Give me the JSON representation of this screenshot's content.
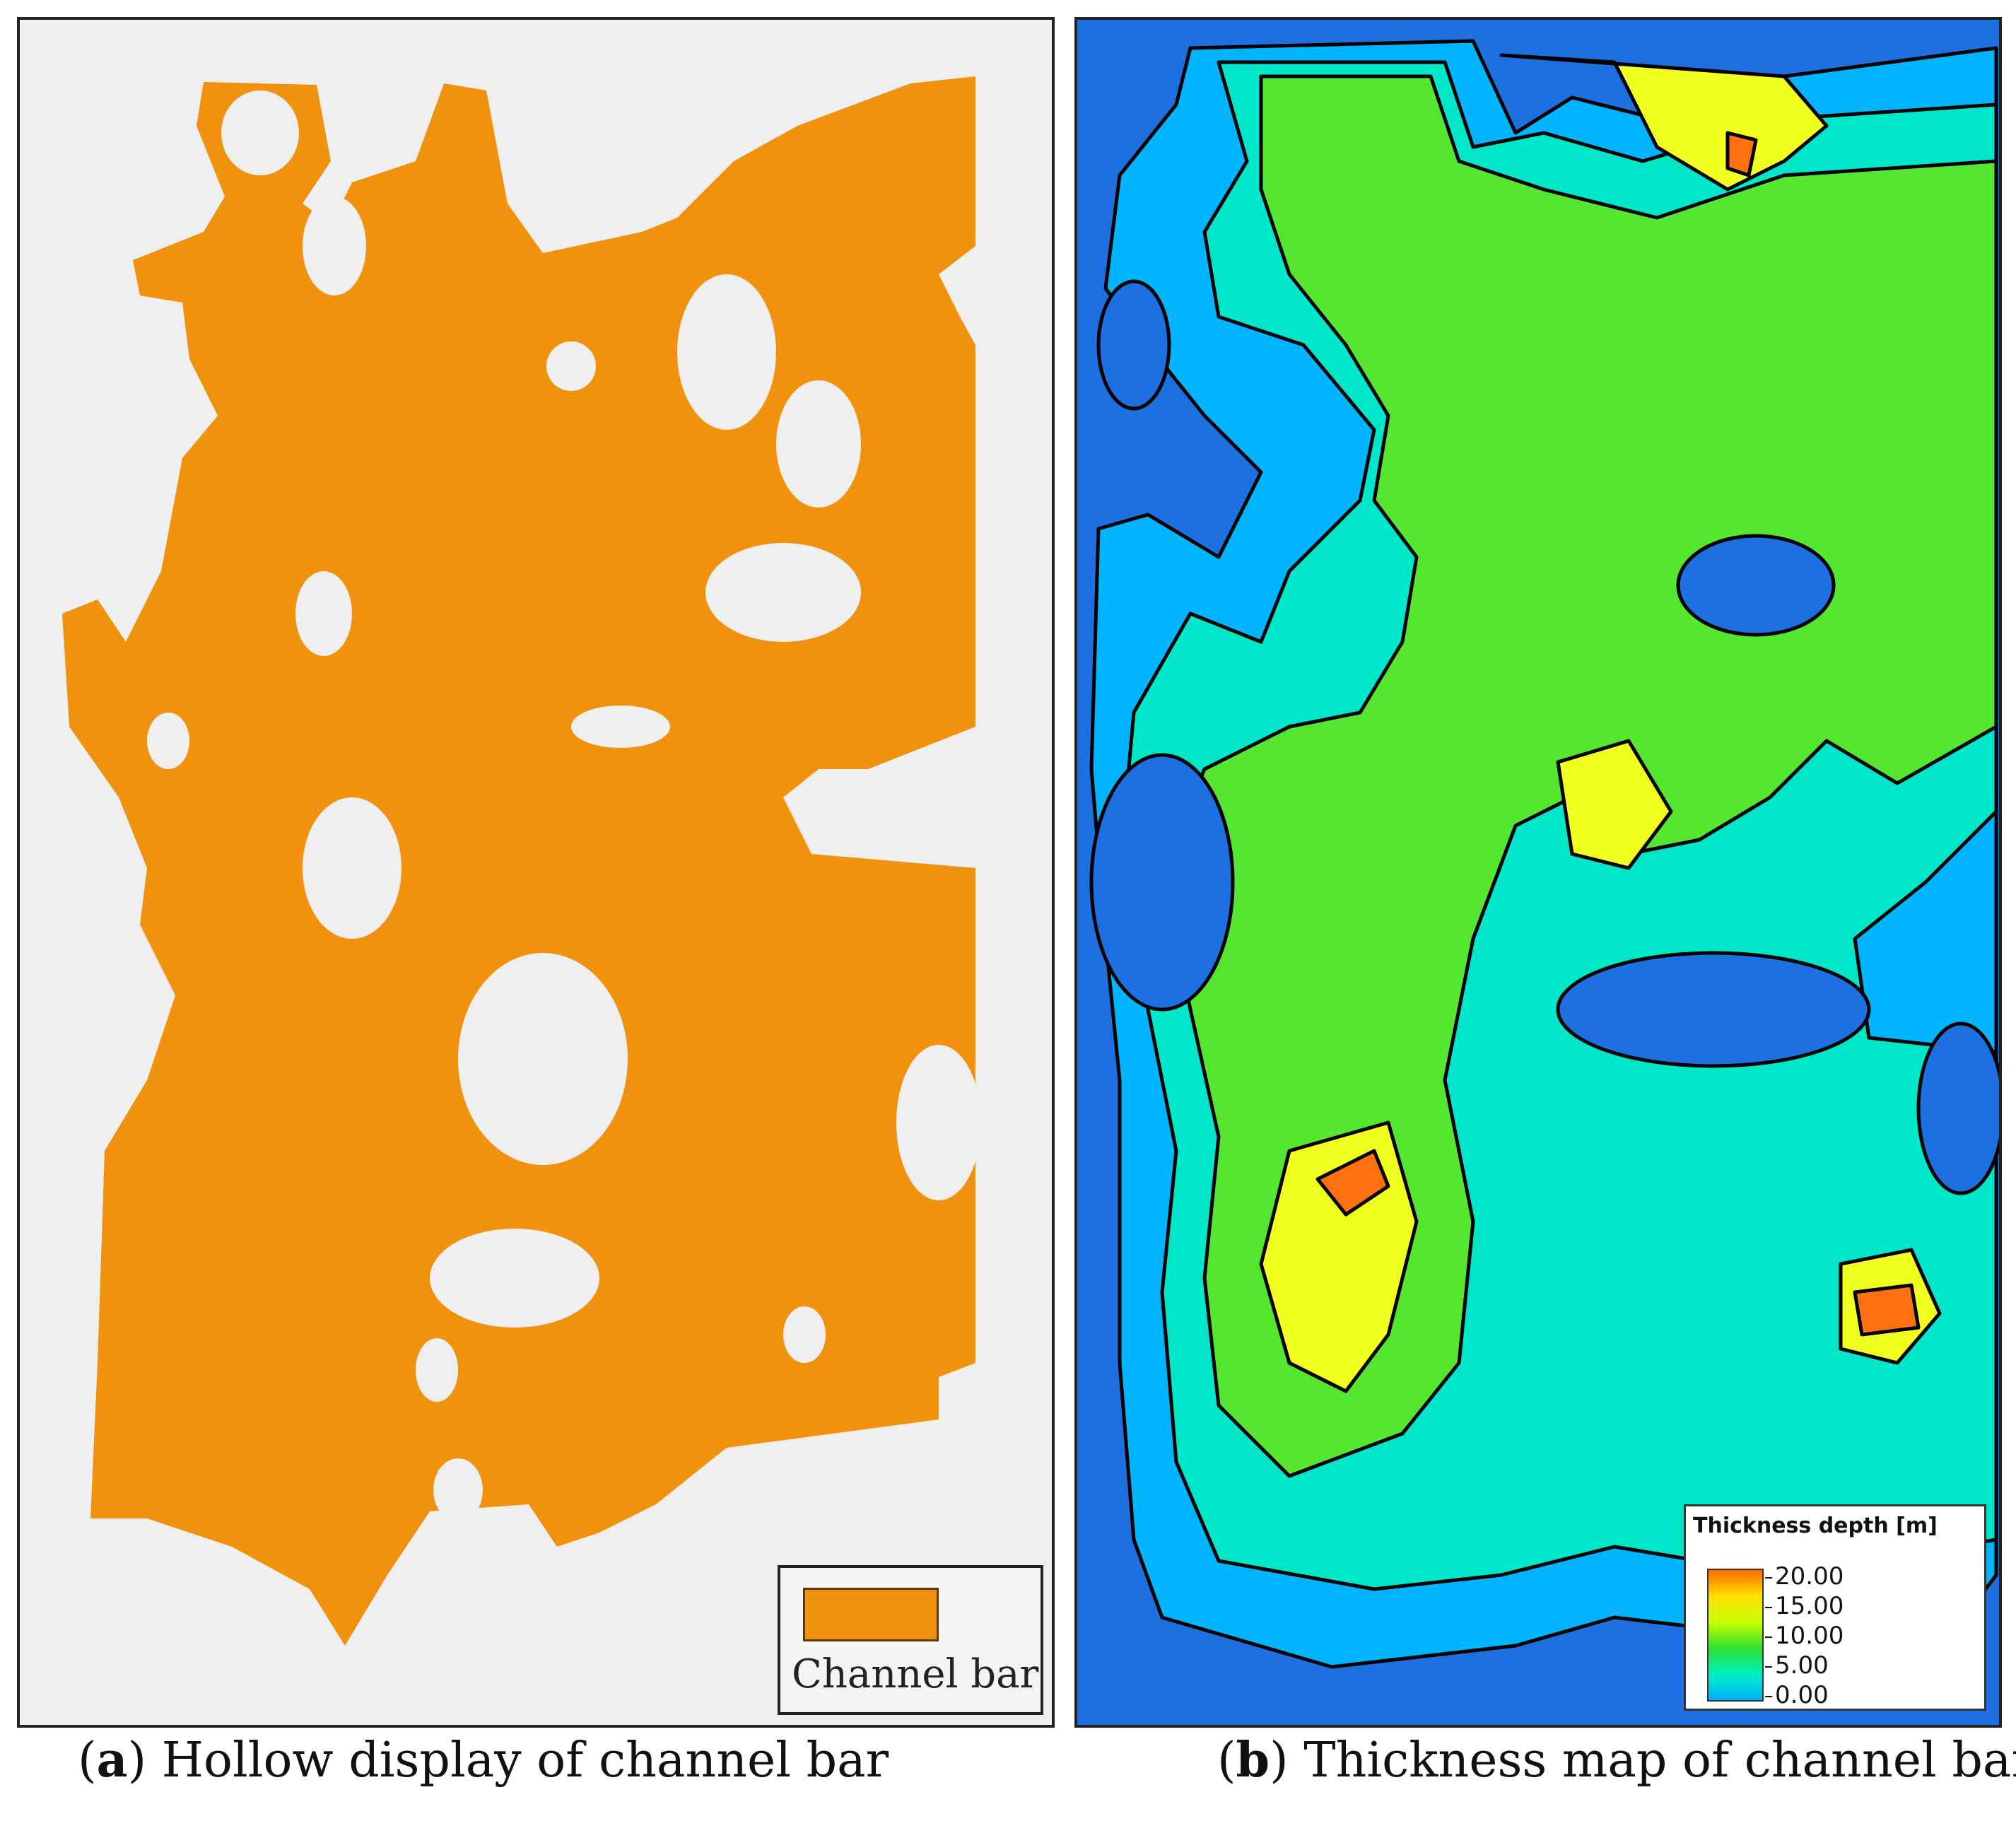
{
  "panel_a": {
    "background_color": "#efefef",
    "fill_color": "#f0920e",
    "legend": {
      "label": "Channel bar",
      "swatch_color": "#f0920e"
    },
    "caption": {
      "letter": "a",
      "text": "Hollow display of channel bar"
    }
  },
  "panel_b": {
    "background_color": "#1e6fe0",
    "legend": {
      "title": "Thickness depth [m]",
      "ticks": [
        "20.00",
        "15.00",
        "10.00",
        "5.00",
        "0.00"
      ],
      "color_scale": [
        "#ff6a00",
        "#ffe000",
        "#c8ff00",
        "#30e030",
        "#00f0c0",
        "#00b0ff"
      ]
    },
    "caption": {
      "letter": "b",
      "text": "Thickness map of channel bar"
    }
  }
}
